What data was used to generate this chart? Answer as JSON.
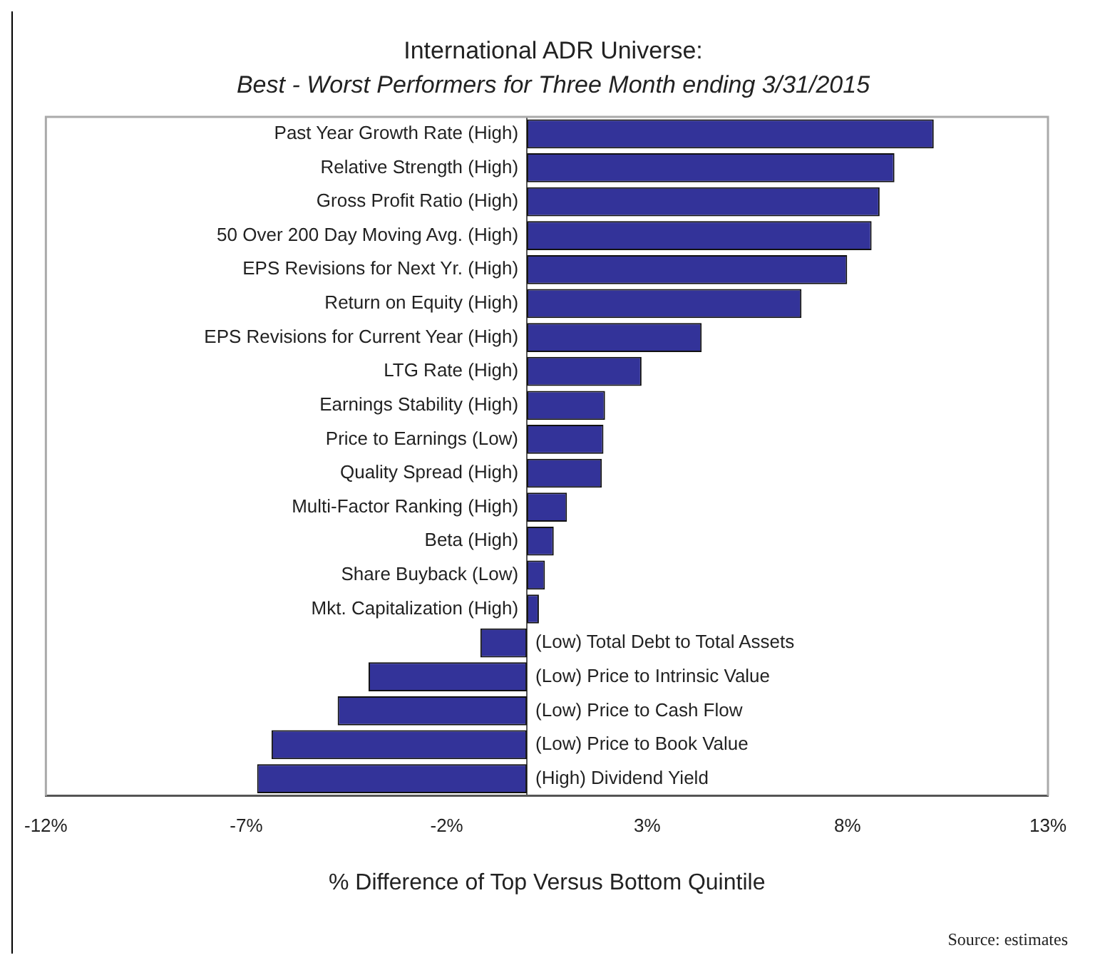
{
  "chart_data": {
    "type": "bar",
    "orientation": "horizontal",
    "title": "International ADR Universe:",
    "subtitle": "Best - Worst Performers for Three Month ending 3/31/2015",
    "xlabel": "% Difference of Top Versus Bottom Quintile",
    "categories": [
      "Past Year Growth Rate (High)",
      "Relative Strength (High)",
      "Gross Profit Ratio (High)",
      "50 Over 200 Day Moving Avg. (High)",
      "EPS Revisions for Next Yr. (High)",
      "Return on Equity (High)",
      "EPS Revisions for Current Year (High)",
      "LTG Rate (High)",
      "Earnings Stability (High)",
      "Price to Earnings (Low)",
      "Quality Spread (High)",
      "Multi-Factor Ranking (High)",
      "Beta (High)",
      "Share Buyback (Low)",
      "Mkt. Capitalization (High)",
      "(Low) Total Debt to Total Assets",
      "(Low) Price to Intrinsic Value",
      "(Low) Price to Cash Flow",
      "(Low) Price to Book Value",
      "(High) Dividend Yield"
    ],
    "values": [
      10.15,
      9.17,
      8.8,
      8.6,
      7.99,
      6.85,
      4.36,
      2.86,
      1.95,
      1.91,
      1.87,
      1.0,
      0.67,
      0.45,
      0.3,
      -1.16,
      -3.95,
      -4.72,
      -6.37,
      -6.73
    ],
    "color": "#333399",
    "xlim": [
      -12,
      13
    ],
    "xticks": [
      {
        "value": -12,
        "label": "-12%"
      },
      {
        "value": -7,
        "label": "-7%"
      },
      {
        "value": -2,
        "label": "-2%"
      },
      {
        "value": 3,
        "label": "3%"
      },
      {
        "value": 8,
        "label": "8%"
      },
      {
        "value": 13,
        "label": "13%"
      }
    ],
    "grid": false,
    "legend": false,
    "annotations": [
      "Source: estimates"
    ]
  }
}
